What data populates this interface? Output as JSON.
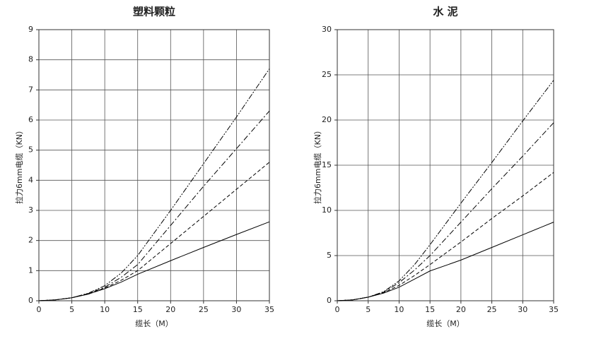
{
  "chart_data": [
    {
      "type": "line",
      "title": "塑料颗粒",
      "x_label": "缆长（M）",
      "y_label": "拉力6mm电缆（KN）",
      "x": [
        0,
        2.5,
        5,
        7.5,
        10,
        12.5,
        15,
        20,
        25,
        30,
        35
      ],
      "series": [
        {
          "color": "#000000",
          "dash": "solid",
          "values": [
            0,
            0.03,
            0.1,
            0.22,
            0.4,
            0.62,
            0.88,
            1.33,
            1.77,
            2.2,
            2.62
          ]
        },
        {
          "color": "#000000",
          "dash": "dashed",
          "values": [
            0,
            0.03,
            0.1,
            0.23,
            0.42,
            0.68,
            1.0,
            1.9,
            2.8,
            3.7,
            4.6
          ]
        },
        {
          "color": "#000000",
          "dash": "dashdot",
          "values": [
            0,
            0.03,
            0.1,
            0.24,
            0.45,
            0.78,
            1.2,
            2.5,
            3.8,
            5.05,
            6.3
          ]
        },
        {
          "color": "#000000",
          "dash": "dashdotdot",
          "values": [
            0,
            0.03,
            0.1,
            0.25,
            0.5,
            0.92,
            1.5,
            3.0,
            4.55,
            6.1,
            7.7
          ]
        }
      ],
      "xlim": [
        0,
        35
      ],
      "xticks": [
        0,
        5,
        10,
        15,
        20,
        25,
        30,
        35
      ],
      "ylim": [
        0,
        9
      ],
      "yticks": [
        0,
        1,
        2,
        3,
        4,
        5,
        6,
        7,
        8,
        9
      ],
      "grid": true
    },
    {
      "type": "line",
      "title": "水 泥",
      "x_label": "缆长（M）",
      "y_label": "拉力6mm电缆（KN）",
      "x": [
        0,
        2.5,
        5,
        7.5,
        10,
        12.5,
        15,
        20,
        25,
        30,
        35
      ],
      "series": [
        {
          "color": "#000000",
          "dash": "solid",
          "values": [
            0,
            0.1,
            0.4,
            0.85,
            1.5,
            2.4,
            3.3,
            4.5,
            5.9,
            7.3,
            8.7
          ]
        },
        {
          "color": "#000000",
          "dash": "dashed",
          "values": [
            0,
            0.1,
            0.4,
            0.9,
            1.7,
            2.8,
            4.0,
            6.5,
            9.1,
            11.6,
            14.2
          ]
        },
        {
          "color": "#000000",
          "dash": "dashdot",
          "values": [
            0,
            0.1,
            0.4,
            0.95,
            2.0,
            3.4,
            5.0,
            8.7,
            12.4,
            16.0,
            19.7
          ]
        },
        {
          "color": "#000000",
          "dash": "dashdotdot",
          "values": [
            0,
            0.1,
            0.4,
            1.0,
            2.2,
            4.0,
            6.2,
            10.8,
            15.3,
            19.9,
            24.4
          ]
        }
      ],
      "xlim": [
        0,
        35
      ],
      "xticks": [
        0,
        5,
        10,
        15,
        20,
        25,
        30,
        35
      ],
      "ylim": [
        0,
        30
      ],
      "yticks": [
        0,
        5,
        10,
        15,
        20,
        25,
        30
      ],
      "grid": true
    }
  ]
}
